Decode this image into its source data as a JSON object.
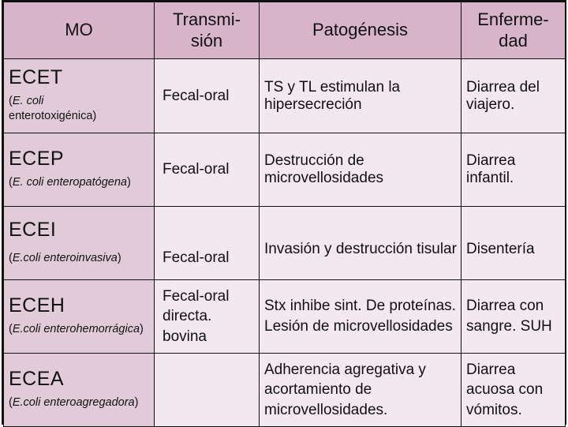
{
  "headers": {
    "mo": "MO",
    "transmision": "Transmi-\nsión",
    "patogenesis": "Patogénesis",
    "enfermedad": "Enferme-\ndad"
  },
  "rows": [
    {
      "abbr": "ECET",
      "full_open": "(",
      "full_italic": "E. coli",
      "full_rest": "enterotoxigénica)",
      "transmision": "Fecal-oral",
      "patogenesis": "TS y TL estimulan la hipersecreción",
      "enfermedad": "Diarrea del viajero."
    },
    {
      "abbr": "ECEP",
      "full_open": "(",
      "full_italic": "E. coli enteropatógena",
      "full_rest": ")",
      "transmision": "Fecal-oral",
      "patogenesis": "Destrucción de microvellosidades",
      "enfermedad": "Diarrea infantil."
    },
    {
      "abbr": "ECEI",
      "full_open": "(",
      "full_italic": "E.coli enteroinvasiva",
      "full_rest": ")",
      "transmision": "Fecal-oral",
      "patogenesis": "Invasión y destrucción tisular",
      "enfermedad": "Disentería"
    },
    {
      "abbr": "ECEH",
      "full_open": "(",
      "full_italic": "E.coli enterohemorrágica",
      "full_rest": ")",
      "transmision": "Fecal-oral directa. bovina",
      "patogenesis": "Stx inhibe sint. De proteínas. Lesión de microvellosidades",
      "enfermedad": "Diarrea con sangre. SUH"
    },
    {
      "abbr": "ECEA",
      "full_open": "(",
      "full_italic": "E.coli enteroagregadora",
      "full_rest": ")",
      "transmision": "",
      "patogenesis": "Adherencia agregativa y acortamiento de microvellosidades.",
      "enfermedad": "Diarrea acuosa con vómitos."
    }
  ]
}
